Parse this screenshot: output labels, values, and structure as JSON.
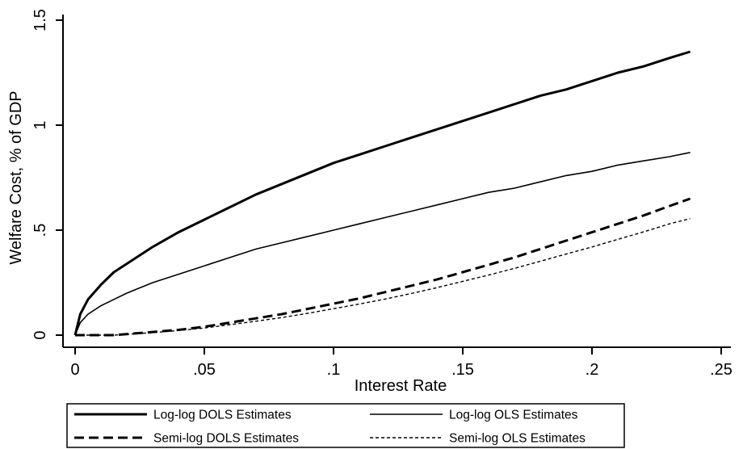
{
  "chart_data": {
    "type": "line",
    "title": "",
    "xlabel": "Interest Rate",
    "ylabel": "Welfare Cost, % of GDP",
    "xlim": [
      0,
      0.25
    ],
    "ylim": [
      0,
      1.5
    ],
    "x_ticks": [
      0,
      0.05,
      0.1,
      0.15,
      0.2,
      0.25
    ],
    "x_tick_labels": [
      "0",
      ".05",
      ".1",
      ".15",
      ".2",
      ".25"
    ],
    "y_ticks": [
      0,
      0.5,
      1,
      1.5
    ],
    "y_tick_labels": [
      "0",
      ".5",
      "1",
      "1.5"
    ],
    "grid": false,
    "legend_position": "bottom",
    "x": [
      0,
      0.002,
      0.005,
      0.01,
      0.015,
      0.02,
      0.03,
      0.04,
      0.05,
      0.06,
      0.07,
      0.08,
      0.09,
      0.1,
      0.11,
      0.12,
      0.13,
      0.14,
      0.15,
      0.16,
      0.17,
      0.18,
      0.19,
      0.2,
      0.21,
      0.22,
      0.23,
      0.238
    ],
    "series": [
      {
        "name": "Log-log DOLS Estimates",
        "style": "thick-solid",
        "values": [
          0,
          0.1,
          0.17,
          0.24,
          0.3,
          0.34,
          0.42,
          0.49,
          0.55,
          0.61,
          0.67,
          0.72,
          0.77,
          0.82,
          0.86,
          0.9,
          0.94,
          0.98,
          1.02,
          1.06,
          1.1,
          1.14,
          1.17,
          1.21,
          1.25,
          1.28,
          1.32,
          1.35
        ]
      },
      {
        "name": "Log-log OLS Estimates",
        "style": "thin-solid",
        "values": [
          0,
          0.06,
          0.1,
          0.14,
          0.17,
          0.2,
          0.25,
          0.29,
          0.33,
          0.37,
          0.41,
          0.44,
          0.47,
          0.5,
          0.53,
          0.56,
          0.59,
          0.62,
          0.65,
          0.68,
          0.7,
          0.73,
          0.76,
          0.78,
          0.81,
          0.83,
          0.85,
          0.87
        ]
      },
      {
        "name": "Semi-log DOLS Estimates",
        "style": "thick-dashed",
        "values": [
          0,
          0,
          0,
          0,
          0,
          0.005,
          0.015,
          0.025,
          0.04,
          0.06,
          0.08,
          0.1,
          0.125,
          0.15,
          0.175,
          0.205,
          0.235,
          0.265,
          0.3,
          0.335,
          0.37,
          0.41,
          0.45,
          0.49,
          0.53,
          0.57,
          0.615,
          0.65
        ]
      },
      {
        "name": "Semi-log OLS Estimates",
        "style": "thin-dotted",
        "values": [
          0,
          0,
          0,
          0,
          0,
          0.004,
          0.012,
          0.022,
          0.034,
          0.05,
          0.066,
          0.084,
          0.104,
          0.126,
          0.148,
          0.172,
          0.198,
          0.226,
          0.256,
          0.286,
          0.318,
          0.352,
          0.386,
          0.42,
          0.456,
          0.492,
          0.53,
          0.555
        ]
      }
    ]
  }
}
